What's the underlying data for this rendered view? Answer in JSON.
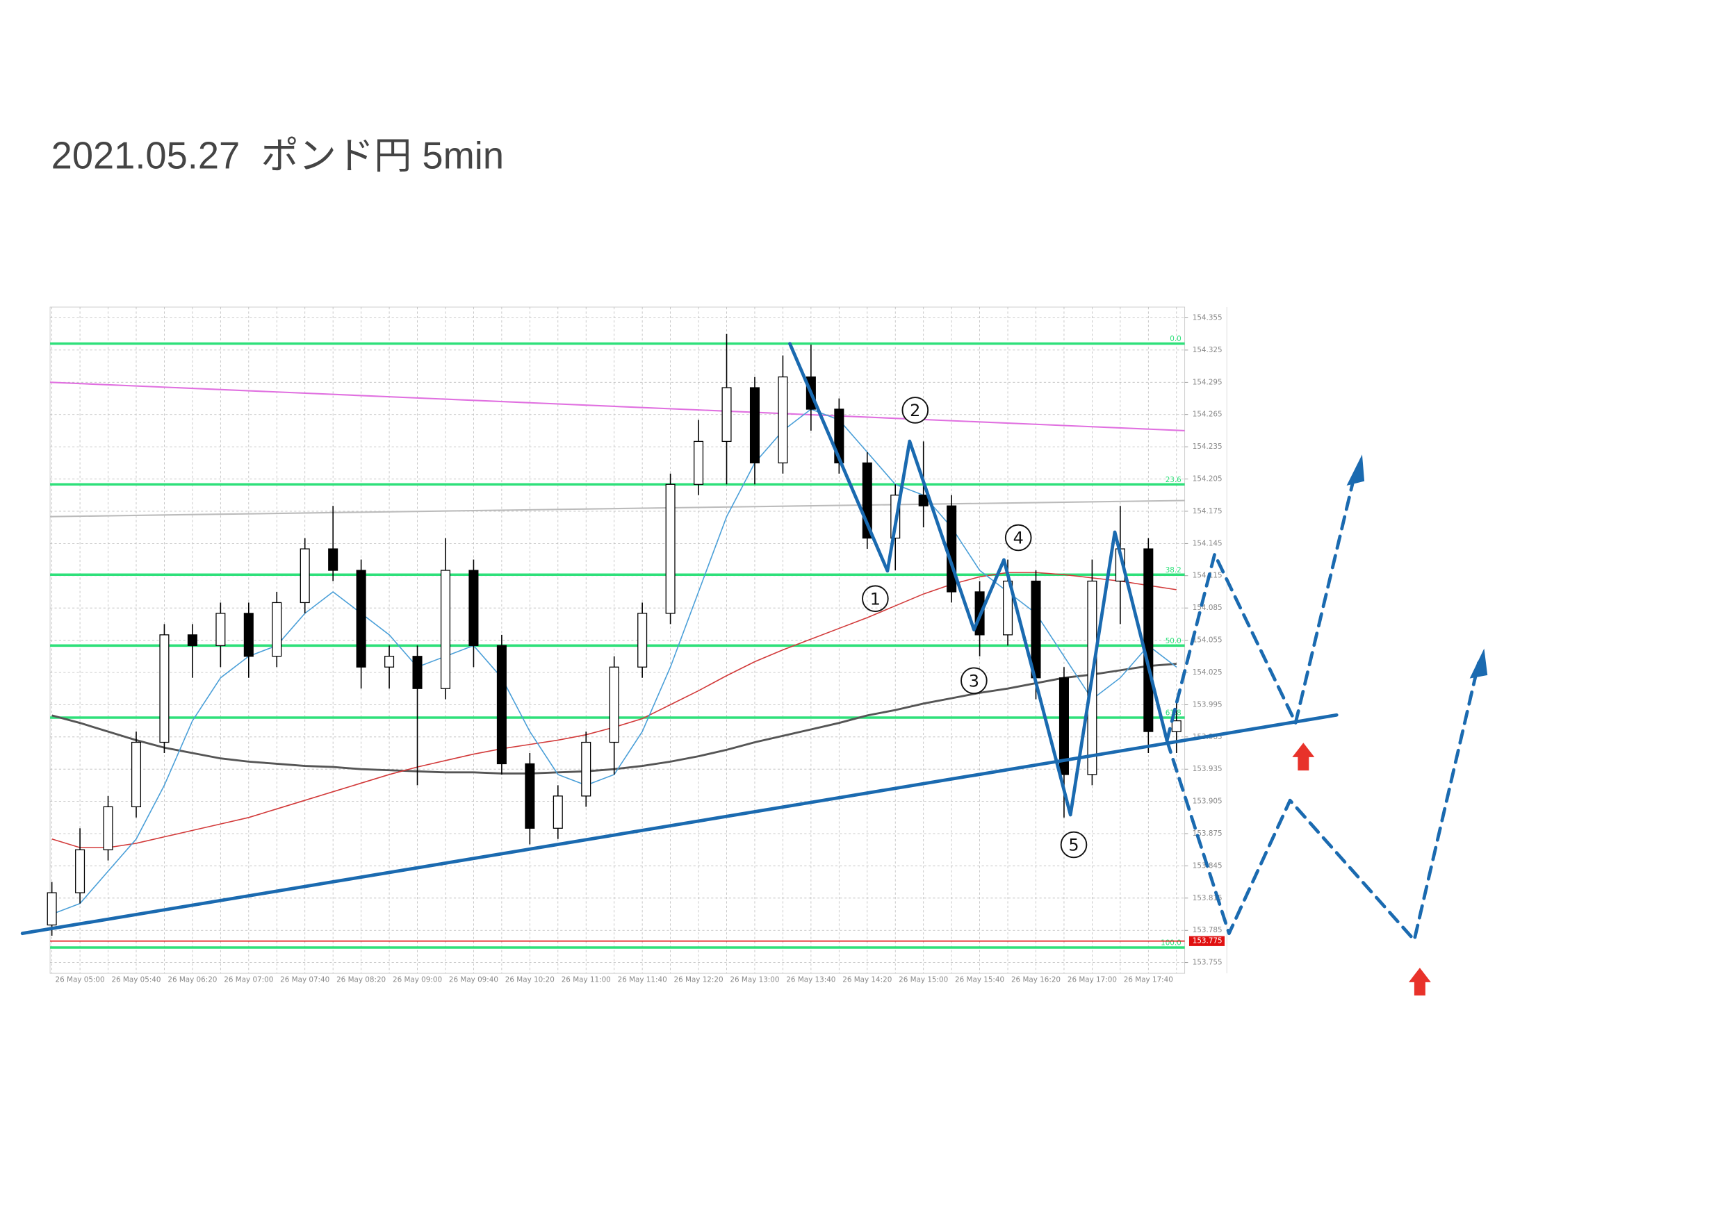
{
  "chart_data": {
    "type": "candlestick",
    "title": "2021.05.27  ポンド円 5min",
    "categories": [
      null,
      "26 May 05:00",
      null,
      "26 May 05:40",
      null,
      "26 May 06:20",
      null,
      "26 May 07:00",
      null,
      "26 May 07:40",
      null,
      "26 May 08:20",
      null,
      "26 May 09:00",
      null,
      "26 May 09:40",
      null,
      "26 May 10:20",
      null,
      "26 May 11:00",
      null,
      "26 May 11:40",
      null,
      "26 May 12:20",
      null,
      "26 May 13:00",
      null,
      "26 May 13:40",
      null,
      "26 May 14:20",
      null,
      "26 May 15:00",
      null,
      "26 May 15:40",
      null,
      "26 May 16:20",
      null,
      "26 May 17:00",
      null,
      "26 May 17:40",
      null
    ],
    "open": [
      153.79,
      153.82,
      153.86,
      153.9,
      153.96,
      154.06,
      154.05,
      154.08,
      154.04,
      154.09,
      154.14,
      154.12,
      154.03,
      154.04,
      154.01,
      154.12,
      154.05,
      153.94,
      153.88,
      153.91,
      153.96,
      154.03,
      154.08,
      154.2,
      154.24,
      154.29,
      154.22,
      154.3,
      154.27,
      154.22,
      154.15,
      154.19,
      154.18,
      154.1,
      154.06,
      154.11,
      154.02,
      153.93,
      154.11,
      154.14,
      153.97
    ],
    "high": [
      153.83,
      153.88,
      153.91,
      153.97,
      154.07,
      154.07,
      154.09,
      154.09,
      154.1,
      154.15,
      154.18,
      154.13,
      154.05,
      154.05,
      154.15,
      154.13,
      154.06,
      153.95,
      153.92,
      153.97,
      154.04,
      154.09,
      154.21,
      154.26,
      154.34,
      154.3,
      154.32,
      154.33,
      154.28,
      154.23,
      154.2,
      154.24,
      154.19,
      154.11,
      154.13,
      154.12,
      154.03,
      154.13,
      154.18,
      154.15,
      154.0
    ],
    "low": [
      153.78,
      153.81,
      153.85,
      153.89,
      153.95,
      154.02,
      154.03,
      154.02,
      154.03,
      154.08,
      154.11,
      154.01,
      154.01,
      153.92,
      154.0,
      154.03,
      153.93,
      153.865,
      153.87,
      153.9,
      153.93,
      154.02,
      154.07,
      154.19,
      154.2,
      154.2,
      154.21,
      154.25,
      154.21,
      154.14,
      154.12,
      154.16,
      154.09,
      154.04,
      154.05,
      154.0,
      153.89,
      153.92,
      154.07,
      153.95,
      153.95
    ],
    "close": [
      153.82,
      153.86,
      153.9,
      153.96,
      154.06,
      154.05,
      154.08,
      154.04,
      154.09,
      154.14,
      154.12,
      154.03,
      154.04,
      154.01,
      154.12,
      154.05,
      153.94,
      153.88,
      153.91,
      153.96,
      154.03,
      154.08,
      154.2,
      154.24,
      154.29,
      154.22,
      154.3,
      154.27,
      154.22,
      154.15,
      154.19,
      154.18,
      154.1,
      154.06,
      154.11,
      154.02,
      153.93,
      154.11,
      154.14,
      153.97,
      153.98
    ],
    "ylim": [
      153.745,
      154.365
    ],
    "yticks": [
      153.755,
      153.785,
      153.815,
      153.845,
      153.875,
      153.905,
      153.935,
      153.965,
      153.995,
      154.025,
      154.055,
      154.085,
      154.115,
      154.145,
      154.175,
      154.205,
      154.235,
      154.265,
      154.295,
      154.325,
      154.355
    ],
    "grid": true,
    "up_color": "#ffffff",
    "down_color": "#000000",
    "moving_averages": [
      {
        "color": "#555555",
        "values": [
          153.985,
          153.978,
          153.97,
          153.962,
          153.955,
          153.95,
          153.945,
          153.942,
          153.94,
          153.938,
          153.937,
          153.935,
          153.934,
          153.933,
          153.932,
          153.932,
          153.931,
          153.931,
          153.932,
          153.933,
          153.935,
          153.938,
          153.942,
          153.947,
          153.953,
          153.96,
          153.966,
          153.972,
          153.978,
          153.985,
          153.99,
          153.996,
          154.001,
          154.006,
          154.01,
          154.015,
          154.02,
          154.023,
          154.027,
          154.031,
          154.033
        ]
      },
      {
        "color": "#d23a3a",
        "values": [
          153.87,
          153.862,
          153.862,
          153.866,
          153.872,
          153.878,
          153.884,
          153.89,
          153.898,
          153.906,
          153.914,
          153.922,
          153.93,
          153.937,
          153.943,
          153.949,
          153.954,
          153.958,
          153.962,
          153.967,
          153.974,
          153.982,
          153.995,
          154.008,
          154.022,
          154.035,
          154.046,
          154.056,
          154.066,
          154.076,
          154.087,
          154.098,
          154.107,
          154.114,
          154.118,
          154.118,
          154.116,
          154.113,
          154.11,
          154.106,
          154.102
        ]
      },
      {
        "color": "#4a9fd8",
        "values": [
          153.8,
          153.81,
          153.84,
          153.87,
          153.92,
          153.98,
          154.02,
          154.04,
          154.05,
          154.08,
          154.1,
          154.08,
          154.06,
          154.03,
          154.04,
          154.05,
          154.02,
          153.97,
          153.93,
          153.92,
          153.93,
          153.97,
          154.03,
          154.1,
          154.17,
          154.22,
          154.25,
          154.27,
          154.26,
          154.23,
          154.2,
          154.19,
          154.16,
          154.12,
          154.1,
          154.08,
          154.04,
          154.0,
          154.02,
          154.05,
          154.03
        ]
      }
    ],
    "trendlines": [
      {
        "color": "#e070e0",
        "from": 154.295,
        "to": 154.25
      },
      {
        "color": "#bbbbbb",
        "from": 154.17,
        "to": 154.185
      }
    ],
    "levels": [
      {
        "value": 154.331,
        "label": "0.0",
        "color": "#2ee07a"
      },
      {
        "value": 154.2,
        "label": "23.6",
        "color": "#2ee07a"
      },
      {
        "value": 154.116,
        "label": "38.2",
        "color": "#2ee07a"
      },
      {
        "value": 154.05,
        "label": "50.0",
        "color": "#2ee07a"
      },
      {
        "value": 153.983,
        "label": "61.8",
        "color": "#2ee07a"
      },
      {
        "value": 153.769,
        "label": "100.0",
        "color": "#2ee07a"
      }
    ],
    "price_marker": {
      "value": 153.775,
      "color": "#e01010"
    },
    "annotations": [
      "1",
      "2",
      "3",
      "4",
      "5"
    ]
  }
}
